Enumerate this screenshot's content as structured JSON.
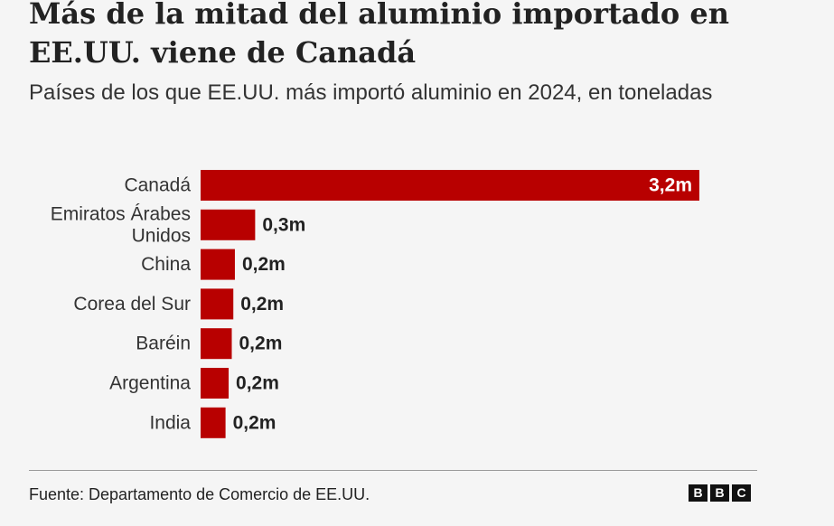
{
  "header": {
    "title": "Más de la mitad del aluminio importado en EE.UU. viene de Canadá",
    "subtitle": "Países de los que EE.UU. más importó aluminio en 2024, en toneladas"
  },
  "footer": {
    "source": "Fuente: Departamento de Comercio de EE.UU.",
    "logo_letters": [
      "B",
      "B",
      "C"
    ]
  },
  "colors": {
    "bar": "#b80000",
    "background": "#f5f5f5",
    "value_inside": "#ffffff",
    "value_outside": "#222222"
  },
  "chart_data": {
    "type": "bar",
    "orientation": "horizontal",
    "categories": [
      "Canadá",
      "Emiratos Árabes Unidos",
      "China",
      "Corea del Sur",
      "Baréin",
      "Argentina",
      "India"
    ],
    "category_lines": [
      [
        "Canadá"
      ],
      [
        "Emiratos Árabes",
        "Unidos"
      ],
      [
        "China"
      ],
      [
        "Corea del Sur"
      ],
      [
        "Baréin"
      ],
      [
        "Argentina"
      ],
      [
        "India"
      ]
    ],
    "values": [
      3.2,
      0.35,
      0.22,
      0.21,
      0.2,
      0.18,
      0.16
    ],
    "value_labels": [
      "3,2m",
      "0,3m",
      "0,2m",
      "0,2m",
      "0,2m",
      "0,2m",
      "0,2m"
    ],
    "units": "toneladas",
    "xlim": [
      0,
      3.2
    ],
    "grid": false,
    "legend": false
  }
}
